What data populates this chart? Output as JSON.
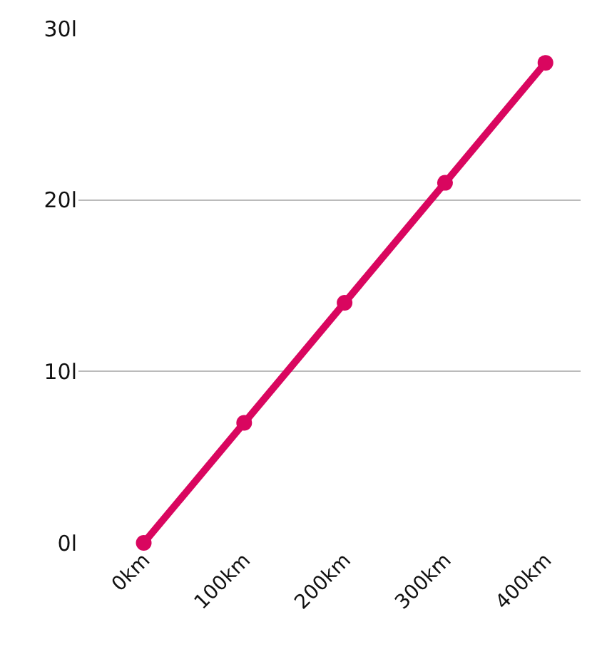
{
  "chart_data": {
    "type": "line",
    "categories": [
      "0km",
      "100km",
      "200km",
      "300km",
      "400km"
    ],
    "series": [
      {
        "color": "#d9065f",
        "values": [
          0,
          7,
          14,
          21,
          28
        ]
      }
    ],
    "ylim": [
      0,
      30
    ],
    "yticks": [
      {
        "value": 0,
        "label": "0l"
      },
      {
        "value": 10,
        "label": "10l"
      },
      {
        "value": 20,
        "label": "20l"
      },
      {
        "value": 30,
        "label": "30l"
      }
    ],
    "grid": "y",
    "marker": "circle",
    "line_style": "solid",
    "legend": false
  }
}
